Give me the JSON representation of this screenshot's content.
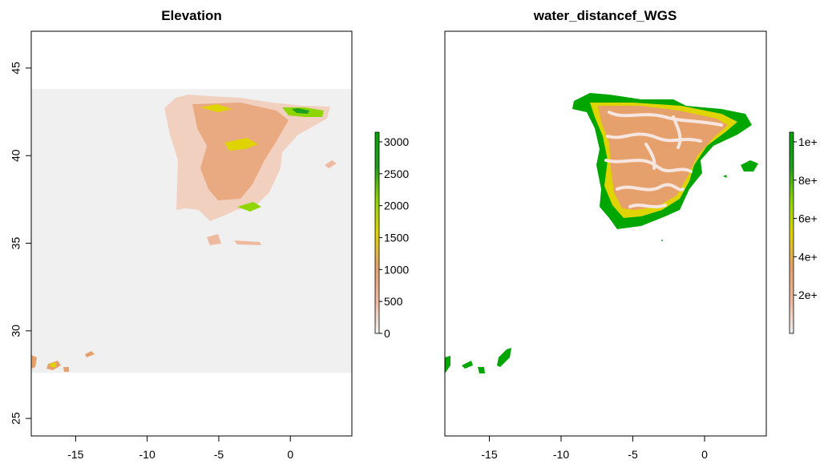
{
  "chart_data": [
    {
      "type": "heatmap",
      "title": "Elevation",
      "xlabel": "",
      "ylabel": "",
      "xlim": [
        -18.1,
        4.3
      ],
      "ylim": [
        24,
        47.1
      ],
      "xticks": [
        "-15",
        "-10",
        "-5",
        "0"
      ],
      "yticks": [
        "25",
        "30",
        "35",
        "40",
        "45"
      ],
      "raster_extent": {
        "x": [
          -18.1,
          4.3
        ],
        "y": [
          27.6,
          43.8
        ]
      },
      "nodata_color": "#f0f0f0",
      "legend": {
        "position": "right",
        "min": 0,
        "max": 3150,
        "ticks": [
          "0",
          "500",
          "1000",
          "1500",
          "2000",
          "2500",
          "3000"
        ],
        "colors": [
          "#f2f2f2",
          "#eeb99f",
          "#e6a06b",
          "#dfd400",
          "#8fd600",
          "#1e9e1e",
          "#00a600"
        ]
      }
    },
    {
      "type": "heatmap",
      "title": "water_distancef_WGS",
      "xlabel": "",
      "ylabel": "",
      "xlim": [
        -18.1,
        4.3
      ],
      "ylim": [
        24,
        47.1
      ],
      "xticks": [
        "-15",
        "-10",
        "-5",
        "0"
      ],
      "yticks": [],
      "legend": {
        "position": "right",
        "min": 0,
        "max": 105000,
        "ticks": [
          "2e+",
          "4e+",
          "6e+",
          "8e+",
          "1e+"
        ],
        "colors": [
          "#f2f2f2",
          "#eeb99f",
          "#e6a06b",
          "#dfd400",
          "#8fd600",
          "#1e9e1e",
          "#00a600"
        ]
      }
    }
  ]
}
